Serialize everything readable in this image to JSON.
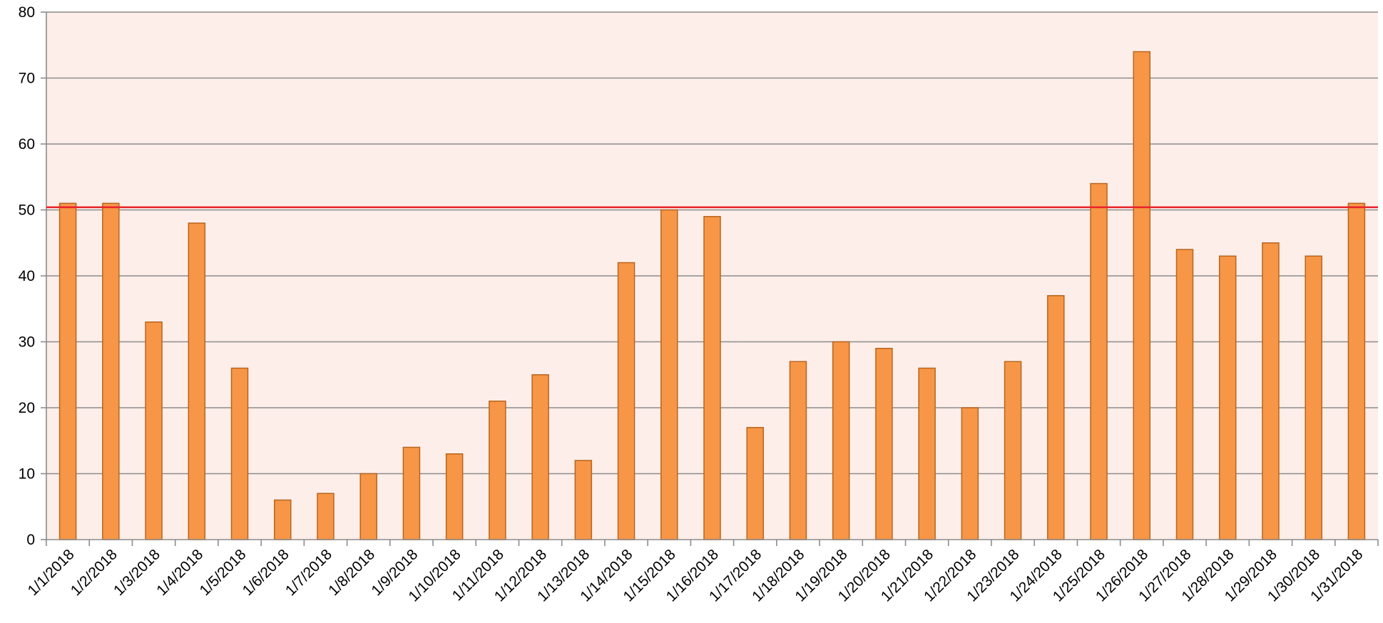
{
  "chart_data": {
    "type": "bar",
    "categories": [
      "1/1/2018",
      "1/2/2018",
      "1/3/2018",
      "1/4/2018",
      "1/5/2018",
      "1/6/2018",
      "1/7/2018",
      "1/8/2018",
      "1/9/2018",
      "1/10/2018",
      "1/11/2018",
      "1/12/2018",
      "1/13/2018",
      "1/14/2018",
      "1/15/2018",
      "1/16/2018",
      "1/17/2018",
      "1/18/2018",
      "1/19/2018",
      "1/20/2018",
      "1/21/2018",
      "1/22/2018",
      "1/23/2018",
      "1/24/2018",
      "1/25/2018",
      "1/26/2018",
      "1/27/2018",
      "1/28/2018",
      "1/29/2018",
      "1/30/2018",
      "1/31/2018"
    ],
    "values": [
      51,
      51,
      33,
      48,
      26,
      6,
      7,
      10,
      14,
      13,
      21,
      25,
      12,
      42,
      50,
      49,
      17,
      27,
      30,
      29,
      26,
      20,
      27,
      37,
      54,
      74,
      44,
      43,
      45,
      43,
      51
    ],
    "reference_line": 50.4,
    "title": "",
    "xlabel": "",
    "ylabel": "",
    "ylim": [
      0,
      80
    ],
    "yticks": [
      0,
      10,
      20,
      30,
      40,
      50,
      60,
      70,
      80
    ],
    "grid": true,
    "legend": "none",
    "colors": {
      "bar_fill": "#f79646",
      "bar_stroke": "#b8651f",
      "plot_background": "#fdeee9",
      "reference_line": "#e8262b",
      "gridline": "#8c8c8c"
    }
  }
}
